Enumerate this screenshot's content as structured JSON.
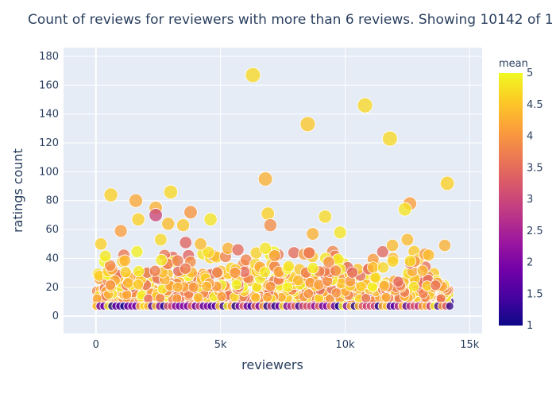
{
  "chart_data": {
    "type": "scatter",
    "title": "Count of reviews for reviewers with more than 6 reviews. Showing 10142 of 1",
    "xlabel": "reviewers",
    "ylabel": "ratings count",
    "xlim": [
      -1300,
      15500
    ],
    "ylim": [
      -12,
      186
    ],
    "x_ticks": [
      0,
      5000,
      10000,
      15000
    ],
    "x_tick_labels": [
      "0",
      "5k",
      "10k",
      "15k"
    ],
    "y_ticks": [
      0,
      20,
      40,
      60,
      80,
      100,
      120,
      140,
      160,
      180
    ],
    "y_tick_labels": [
      "0",
      "20",
      "40",
      "60",
      "80",
      "100",
      "120",
      "140",
      "160",
      "180"
    ],
    "grid": true,
    "colorbar": {
      "title": "mean",
      "min": 1,
      "max": 5,
      "ticks": [
        1,
        1.5,
        2,
        2.5,
        3,
        3.5,
        4,
        4.5,
        5
      ],
      "tick_labels": [
        "1",
        "1.5",
        "2",
        "2.5",
        "3",
        "3.5",
        "4",
        "4.5",
        "5"
      ]
    },
    "notable_points": [
      {
        "x": 6300,
        "y": 167,
        "mean": 4.7
      },
      {
        "x": 10800,
        "y": 146,
        "mean": 4.7
      },
      {
        "x": 8500,
        "y": 133,
        "mean": 4.5
      },
      {
        "x": 11800,
        "y": 123,
        "mean": 4.7
      },
      {
        "x": 6800,
        "y": 95,
        "mean": 4.3
      },
      {
        "x": 14100,
        "y": 92,
        "mean": 4.6
      },
      {
        "x": 3000,
        "y": 86,
        "mean": 4.7
      },
      {
        "x": 600,
        "y": 84,
        "mean": 4.6
      },
      {
        "x": 1600,
        "y": 80,
        "mean": 4.2
      },
      {
        "x": 12600,
        "y": 78,
        "mean": 4.1
      },
      {
        "x": 2400,
        "y": 75,
        "mean": 4.3
      },
      {
        "x": 12400,
        "y": 74,
        "mean": 4.8
      },
      {
        "x": 3800,
        "y": 72,
        "mean": 4.0
      },
      {
        "x": 6900,
        "y": 71,
        "mean": 4.6
      },
      {
        "x": 2400,
        "y": 70,
        "mean": 3.0
      },
      {
        "x": 9200,
        "y": 69,
        "mean": 4.7
      },
      {
        "x": 1700,
        "y": 67,
        "mean": 4.6
      },
      {
        "x": 4600,
        "y": 67,
        "mean": 4.8
      },
      {
        "x": 2900,
        "y": 64,
        "mean": 4.4
      },
      {
        "x": 3500,
        "y": 63,
        "mean": 4.5
      },
      {
        "x": 7000,
        "y": 63,
        "mean": 3.9
      },
      {
        "x": 1000,
        "y": 59,
        "mean": 4.1
      },
      {
        "x": 9800,
        "y": 58,
        "mean": 4.8
      },
      {
        "x": 8700,
        "y": 57,
        "mean": 4.3
      },
      {
        "x": 2600,
        "y": 53,
        "mean": 4.7
      },
      {
        "x": 12500,
        "y": 53,
        "mean": 4.4
      },
      {
        "x": 3600,
        "y": 51,
        "mean": 3.4
      },
      {
        "x": 200,
        "y": 50,
        "mean": 4.6
      },
      {
        "x": 4200,
        "y": 50,
        "mean": 4.4
      },
      {
        "x": 11900,
        "y": 49,
        "mean": 4.4
      },
      {
        "x": 14000,
        "y": 49,
        "mean": 4.3
      },
      {
        "x": 5300,
        "y": 47,
        "mean": 4.3
      },
      {
        "x": 6800,
        "y": 47,
        "mean": 4.8
      },
      {
        "x": 5700,
        "y": 46,
        "mean": 3.5
      }
    ],
    "point_density": [
      {
        "y_min": 7,
        "y_max": 12,
        "share": 0.55
      },
      {
        "y_min": 12,
        "y_max": 20,
        "share": 0.25
      },
      {
        "y_min": 20,
        "y_max": 30,
        "share": 0.13
      },
      {
        "y_min": 30,
        "y_max": 45,
        "share": 0.07
      }
    ],
    "x_range": [
      0,
      14200
    ],
    "min_count": 7
  }
}
